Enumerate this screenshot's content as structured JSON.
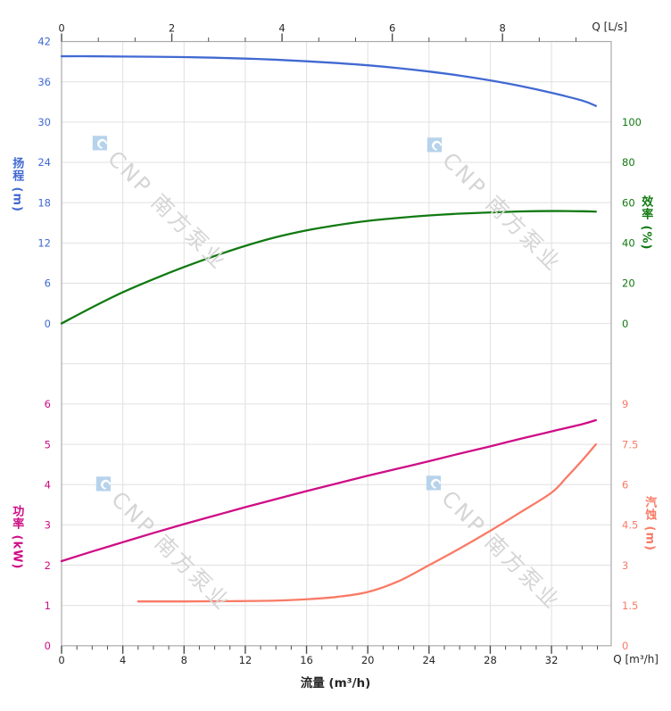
{
  "watermark": {
    "logo_glyph": "◆",
    "logo_letter": "C",
    "text": "CNP 南方泵业"
  },
  "colors": {
    "head": "#4169d2",
    "efficiency": "#117a11",
    "power": "#cf0d86",
    "npsh": "#f97a66",
    "axis_text": "#262626",
    "tick": "#4d4d4d",
    "grid": "#e0e0e0",
    "border": "#ababab",
    "watermark_text": "#d5d5d5",
    "watermark_logo": "#b7d3ec",
    "background": "#ffffff"
  },
  "chart_data": {
    "type": "line",
    "title": "",
    "x_axis_bottom": {
      "label": "Q [m³/h]",
      "title": "流量 (m³/h)",
      "range": [
        0,
        35.9
      ],
      "ticks": [
        0,
        4,
        8,
        12,
        16,
        20,
        24,
        28,
        32
      ],
      "major_step": 4,
      "minor_divisions": 4,
      "minor_max": 35
    },
    "x_axis_top": {
      "label": "Q [L/s]",
      "range": [
        0,
        9.97
      ],
      "ticks": [
        0,
        2,
        4,
        6,
        8
      ],
      "major_step": 2,
      "minor_divisions": 3,
      "minor_max": 9.34
    },
    "axes": {
      "head": {
        "title": "扬程 (m)",
        "side": "left",
        "range": [
          0,
          42
        ],
        "ticks": [
          0,
          6,
          12,
          18,
          24,
          30,
          36,
          42
        ],
        "major_step": 6,
        "minor_divisions": 3
      },
      "efficiency": {
        "title": "效率 (%)",
        "side": "right",
        "range": [
          0,
          100
        ],
        "ticks": [
          0,
          20,
          40,
          60,
          80,
          100
        ],
        "major_step": 20,
        "minor_divisions": 3
      },
      "power": {
        "title": "功率 (kW)",
        "side": "left",
        "range": [
          0,
          6
        ],
        "ticks": [
          0,
          1,
          2,
          3,
          4,
          5,
          6
        ],
        "major_step": 1,
        "minor_divisions": 3
      },
      "npsh": {
        "title": "汽蚀 (m)",
        "side": "right",
        "range": [
          0,
          9
        ],
        "ticks": [
          0,
          1.5,
          3,
          4.5,
          6,
          7.5,
          9
        ],
        "major_step": 1.5,
        "minor_divisions": 3
      }
    },
    "grid": true,
    "legend": "none",
    "series": [
      {
        "id": "head",
        "name": "扬程 (m)",
        "axis": "head",
        "color_key": "head",
        "points": [
          [
            0,
            39.8
          ],
          [
            2,
            39.8
          ],
          [
            4,
            39.75
          ],
          [
            6,
            39.72
          ],
          [
            8,
            39.67
          ],
          [
            10,
            39.58
          ],
          [
            12,
            39.45
          ],
          [
            14,
            39.28
          ],
          [
            16,
            39.05
          ],
          [
            18,
            38.78
          ],
          [
            20,
            38.45
          ],
          [
            22,
            38.03
          ],
          [
            24,
            37.52
          ],
          [
            26,
            36.92
          ],
          [
            28,
            36.2
          ],
          [
            30,
            35.35
          ],
          [
            32,
            34.35
          ],
          [
            34,
            33.2
          ],
          [
            34.9,
            32.4
          ]
        ]
      },
      {
        "id": "efficiency",
        "name": "效率 (%)",
        "axis": "efficiency",
        "color_key": "efficiency",
        "points": [
          [
            0,
            0
          ],
          [
            2,
            8
          ],
          [
            4,
            15.5
          ],
          [
            6,
            22
          ],
          [
            8,
            28
          ],
          [
            10,
            33.5
          ],
          [
            12,
            38.5
          ],
          [
            14,
            42.8
          ],
          [
            16,
            46.2
          ],
          [
            18,
            48.8
          ],
          [
            20,
            50.9
          ],
          [
            22,
            52.4
          ],
          [
            24,
            53.6
          ],
          [
            26,
            54.5
          ],
          [
            28,
            55.1
          ],
          [
            30,
            55.6
          ],
          [
            32,
            55.8
          ],
          [
            34,
            55.7
          ],
          [
            34.9,
            55.5
          ]
        ]
      },
      {
        "id": "power",
        "name": "功率 (kW)",
        "axis": "power",
        "color_key": "power",
        "points": [
          [
            0,
            2.1
          ],
          [
            2,
            2.34
          ],
          [
            4,
            2.57
          ],
          [
            6,
            2.8
          ],
          [
            8,
            3.02
          ],
          [
            10,
            3.23
          ],
          [
            12,
            3.44
          ],
          [
            14,
            3.64
          ],
          [
            16,
            3.84
          ],
          [
            18,
            4.03
          ],
          [
            20,
            4.22
          ],
          [
            22,
            4.4
          ],
          [
            24,
            4.58
          ],
          [
            26,
            4.77
          ],
          [
            28,
            4.95
          ],
          [
            30,
            5.14
          ],
          [
            32,
            5.32
          ],
          [
            34,
            5.5
          ],
          [
            34.9,
            5.6
          ]
        ]
      },
      {
        "id": "npsh",
        "name": "汽蚀 (m)",
        "axis": "npsh",
        "color_key": "npsh",
        "points": [
          [
            5,
            1.65
          ],
          [
            8,
            1.65
          ],
          [
            11,
            1.66
          ],
          [
            14,
            1.68
          ],
          [
            16,
            1.73
          ],
          [
            18,
            1.82
          ],
          [
            20,
            2.0
          ],
          [
            22,
            2.4
          ],
          [
            24,
            3.0
          ],
          [
            26,
            3.62
          ],
          [
            28,
            4.28
          ],
          [
            30,
            4.98
          ],
          [
            32,
            5.7
          ],
          [
            33,
            6.28
          ],
          [
            34,
            6.9
          ],
          [
            34.9,
            7.5
          ]
        ]
      }
    ]
  }
}
